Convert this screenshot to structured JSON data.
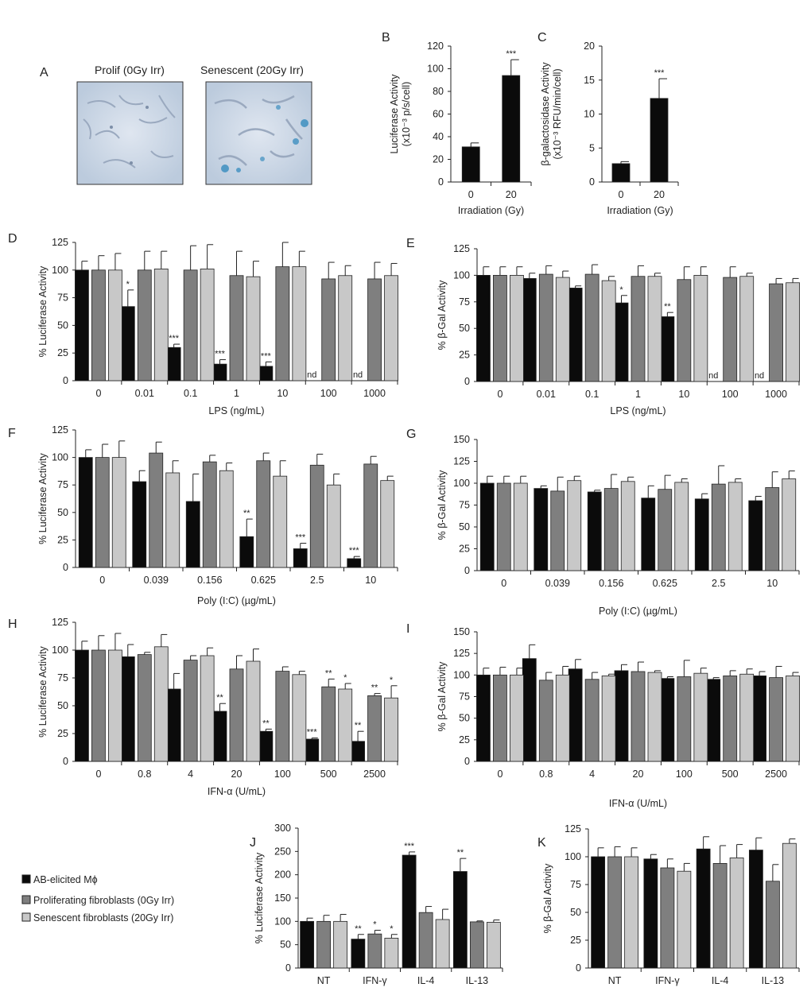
{
  "colors": {
    "black": "#0b0b0b",
    "gray": "#7f7f7f",
    "light": "#c8c8c8",
    "stroke": "#222222",
    "panel_bg": "#c9d6e6"
  },
  "micrographs": {
    "letter": "A",
    "left_title": "Prolif (0Gy Irr)",
    "right_title": "Senescent (20Gy Irr)"
  },
  "legend": {
    "items": [
      {
        "label": "AB-elicited Mϕ",
        "color": "#0b0b0b"
      },
      {
        "label": "Proliferating fibroblasts (0Gy Irr)",
        "color": "#7f7f7f"
      },
      {
        "label": "Senescent fibroblasts (20Gy Irr)",
        "color": "#c8c8c8"
      }
    ]
  },
  "chart_data": [
    {
      "id": "B",
      "type": "bar",
      "letter": "B",
      "ylabel": [
        "Luciferase Activity",
        "(x10⁻³ p/s/cell)"
      ],
      "xlabel": "Irradiation (Gy)",
      "ylim": [
        0,
        120
      ],
      "yticks": [
        0,
        20,
        40,
        60,
        80,
        100,
        120
      ],
      "categories": [
        "0",
        "20"
      ],
      "series": [
        {
          "name": "bar",
          "values": [
            31,
            94
          ],
          "errors": [
            3.5,
            14
          ],
          "stars": [
            "",
            "***"
          ]
        }
      ]
    },
    {
      "id": "C",
      "type": "bar",
      "letter": "C",
      "ylabel": [
        "β-galactosidase Activity",
        "(x10⁻³ RFU/min/cell)"
      ],
      "xlabel": "Irradiation (Gy)",
      "ylim": [
        0,
        20
      ],
      "yticks": [
        0,
        5,
        10,
        15,
        20
      ],
      "categories": [
        "0",
        "20"
      ],
      "series": [
        {
          "name": "bar",
          "values": [
            2.7,
            12.3
          ],
          "errors": [
            0.3,
            2.9
          ],
          "stars": [
            "",
            "***"
          ]
        }
      ]
    },
    {
      "id": "D",
      "type": "bar",
      "letter": "D",
      "ylabel": [
        "% Luciferase Activity"
      ],
      "xlabel": "LPS (ng/mL)",
      "ylim": [
        0,
        125
      ],
      "yticks": [
        0,
        25,
        50,
        75,
        100,
        125
      ],
      "categories": [
        "0",
        "0.01",
        "0.1",
        "1",
        "10",
        "100",
        "1000"
      ],
      "series": [
        {
          "name": "AB-elicited Mϕ",
          "values": [
            100,
            67,
            30,
            15,
            13,
            null,
            null
          ],
          "errors": [
            8,
            15,
            3,
            4,
            4,
            0,
            0
          ],
          "stars": [
            "",
            "*",
            "***",
            "***",
            "***",
            "",
            ""
          ],
          "nd": [
            false,
            false,
            false,
            false,
            false,
            true,
            true
          ]
        },
        {
          "name": "Proliferating fibroblasts (0Gy Irr)",
          "values": [
            100,
            100,
            100,
            95,
            103,
            92,
            92
          ],
          "errors": [
            13,
            17,
            22,
            22,
            22,
            15,
            15
          ],
          "stars": [
            "",
            "",
            "",
            "",
            "",
            "",
            ""
          ]
        },
        {
          "name": "Senescent fibroblasts (20Gy Irr)",
          "values": [
            100,
            101,
            101,
            94,
            103,
            95,
            95
          ],
          "errors": [
            15,
            16,
            22,
            14,
            14,
            9,
            11
          ],
          "stars": [
            "",
            "",
            "",
            "",
            "",
            "",
            ""
          ]
        }
      ]
    },
    {
      "id": "E",
      "type": "bar",
      "letter": "E",
      "ylabel": [
        "% β-Gal Activity"
      ],
      "xlabel": "LPS (ng/mL)",
      "ylim": [
        0,
        125
      ],
      "yticks": [
        0,
        25,
        50,
        75,
        100,
        125
      ],
      "categories": [
        "0",
        "0.01",
        "0.1",
        "1",
        "10",
        "100",
        "1000"
      ],
      "series": [
        {
          "name": "AB-elicited Mϕ",
          "values": [
            100,
            97,
            88,
            74,
            61,
            null,
            null
          ],
          "errors": [
            8,
            5,
            2,
            7,
            4,
            0,
            0
          ],
          "stars": [
            "",
            "",
            "",
            "*",
            "**",
            "",
            ""
          ],
          "nd": [
            false,
            false,
            false,
            false,
            false,
            true,
            true
          ]
        },
        {
          "name": "Proliferating fibroblasts (0Gy Irr)",
          "values": [
            100,
            101,
            101,
            99,
            96,
            98,
            92
          ],
          "errors": [
            8,
            8,
            9,
            10,
            12,
            10,
            5
          ],
          "stars": [
            "",
            "",
            "",
            "",
            "",
            "",
            ""
          ]
        },
        {
          "name": "Senescent fibroblasts (20Gy Irr)",
          "values": [
            100,
            98,
            95,
            99,
            100,
            99,
            93
          ],
          "errors": [
            8,
            6,
            4,
            3,
            8,
            3,
            4
          ],
          "stars": [
            "",
            "",
            "",
            "",
            "",
            "",
            ""
          ]
        }
      ]
    },
    {
      "id": "F",
      "type": "bar",
      "letter": "F",
      "ylabel": [
        "% Luciferase Activity"
      ],
      "xlabel": "Poly (I:C) (µg/mL)",
      "ylim": [
        0,
        125
      ],
      "yticks": [
        0,
        25,
        50,
        75,
        100,
        125
      ],
      "categories": [
        "0",
        "0.039",
        "0.156",
        "0.625",
        "2.5",
        "10"
      ],
      "series": [
        {
          "name": "AB-elicited Mϕ",
          "values": [
            100,
            78,
            60,
            28,
            17,
            8
          ],
          "errors": [
            7,
            10,
            25,
            16,
            5,
            2
          ],
          "stars": [
            "",
            "",
            "",
            "**",
            "***",
            "***"
          ]
        },
        {
          "name": "Proliferating fibroblasts (0Gy Irr)",
          "values": [
            100,
            104,
            96,
            97,
            93,
            94
          ],
          "errors": [
            12,
            10,
            6,
            7,
            10,
            7
          ],
          "stars": [
            "",
            "",
            "",
            "",
            "",
            ""
          ]
        },
        {
          "name": "Senescent fibroblasts (20Gy Irr)",
          "values": [
            100,
            86,
            88,
            83,
            75,
            79
          ],
          "errors": [
            15,
            11,
            7,
            14,
            10,
            4
          ],
          "stars": [
            "",
            "",
            "",
            "",
            "",
            ""
          ]
        }
      ]
    },
    {
      "id": "G",
      "type": "bar",
      "letter": "G",
      "ylabel": [
        "% β-Gal Activity"
      ],
      "xlabel": "Poly (I:C) (µg/mL)",
      "ylim": [
        0,
        150
      ],
      "yticks": [
        0,
        25,
        50,
        75,
        100,
        125,
        150
      ],
      "categories": [
        "0",
        "0.039",
        "0.156",
        "0.625",
        "2.5",
        "10"
      ],
      "series": [
        {
          "name": "AB-elicited Mϕ",
          "values": [
            100,
            94,
            90,
            83,
            82,
            80
          ],
          "errors": [
            8,
            3,
            2,
            14,
            6,
            5
          ],
          "stars": [
            "",
            "",
            "",
            "",
            "",
            ""
          ]
        },
        {
          "name": "Proliferating fibroblasts (0Gy Irr)",
          "values": [
            100,
            91,
            94,
            93,
            99,
            95
          ],
          "errors": [
            8,
            16,
            16,
            16,
            21,
            18
          ],
          "stars": [
            "",
            "",
            "",
            "",
            "",
            ""
          ]
        },
        {
          "name": "Senescent fibroblasts (20Gy Irr)",
          "values": [
            100,
            103,
            102,
            101,
            101,
            105
          ],
          "errors": [
            8,
            5,
            5,
            4,
            4,
            9
          ],
          "stars": [
            "",
            "",
            "",
            "",
            "",
            ""
          ]
        }
      ]
    },
    {
      "id": "H",
      "type": "bar",
      "letter": "H",
      "ylabel": [
        "% Luciferase Activity"
      ],
      "xlabel": "IFN-α (U/mL)",
      "ylim": [
        0,
        125
      ],
      "yticks": [
        0,
        25,
        50,
        75,
        100,
        125
      ],
      "categories": [
        "0",
        "0.8",
        "4",
        "20",
        "100",
        "500",
        "2500"
      ],
      "series": [
        {
          "name": "AB-elicited Mϕ",
          "values": [
            100,
            94,
            65,
            45,
            27,
            20,
            18
          ],
          "errors": [
            8,
            11,
            14,
            7,
            2,
            1,
            9
          ],
          "stars": [
            "",
            "",
            "",
            "**",
            "**",
            "***",
            "**"
          ]
        },
        {
          "name": "Proliferating fibroblasts (0Gy Irr)",
          "values": [
            100,
            96,
            91,
            83,
            81,
            67,
            59
          ],
          "errors": [
            13,
            2,
            4,
            12,
            4,
            7,
            2
          ],
          "stars": [
            "",
            "",
            "",
            "",
            "",
            "**",
            "**"
          ]
        },
        {
          "name": "Senescent fibroblasts (20Gy Irr)",
          "values": [
            100,
            103,
            95,
            90,
            78,
            65,
            57
          ],
          "errors": [
            15,
            11,
            7,
            11,
            3,
            5,
            11
          ],
          "stars": [
            "",
            "",
            "",
            "",
            "",
            "*",
            "*"
          ]
        }
      ]
    },
    {
      "id": "I",
      "type": "bar",
      "letter": "I",
      "ylabel": [
        "% β-Gal Activity"
      ],
      "xlabel": "IFN-α (U/mL)",
      "ylim": [
        0,
        150
      ],
      "yticks": [
        0,
        25,
        50,
        75,
        100,
        125,
        150
      ],
      "categories": [
        "0",
        "0.8",
        "4",
        "20",
        "100",
        "500",
        "2500"
      ],
      "series": [
        {
          "name": "AB-elicited Mϕ",
          "values": [
            100,
            119,
            107,
            105,
            96,
            95,
            99
          ],
          "errors": [
            8,
            16,
            11,
            7,
            2,
            2,
            5
          ],
          "stars": [
            "",
            "",
            "",
            "",
            "",
            "",
            ""
          ]
        },
        {
          "name": "Proliferating fibroblasts (0Gy Irr)",
          "values": [
            100,
            94,
            95,
            104,
            98,
            99,
            97
          ],
          "errors": [
            9,
            9,
            8,
            11,
            19,
            6,
            13
          ],
          "stars": [
            "",
            "",
            "",
            "",
            "",
            "",
            ""
          ]
        },
        {
          "name": "Senescent fibroblasts (20Gy Irr)",
          "values": [
            100,
            100,
            99,
            103,
            102,
            101,
            99
          ],
          "errors": [
            8,
            10,
            2,
            2,
            6,
            6,
            4
          ],
          "stars": [
            "",
            "",
            "",
            "",
            "",
            "",
            ""
          ]
        }
      ]
    },
    {
      "id": "J",
      "type": "bar",
      "letter": "J",
      "ylabel": [
        "% Luciferase Activity"
      ],
      "xlabel": "",
      "ylim": [
        0,
        300
      ],
      "yticks": [
        0,
        50,
        100,
        150,
        200,
        250,
        300
      ],
      "categories": [
        "NT",
        "IFN-γ",
        "IL-4",
        "IL-13"
      ],
      "series": [
        {
          "name": "AB-elicited Mϕ",
          "values": [
            100,
            62,
            242,
            207
          ],
          "errors": [
            7,
            10,
            7,
            28
          ],
          "stars": [
            "",
            "**",
            "***",
            "**"
          ]
        },
        {
          "name": "Proliferating fibroblasts (0Gy Irr)",
          "values": [
            100,
            73,
            119,
            99
          ],
          "errors": [
            13,
            8,
            13,
            2
          ],
          "stars": [
            "",
            "*",
            "",
            ""
          ]
        },
        {
          "name": "Senescent fibroblasts (20Gy Irr)",
          "values": [
            100,
            64,
            104,
            98
          ],
          "errors": [
            15,
            8,
            22,
            5
          ],
          "stars": [
            "",
            "*",
            "",
            ""
          ]
        }
      ]
    },
    {
      "id": "K",
      "type": "bar",
      "letter": "K",
      "ylabel": [
        "% β-Gal Activity"
      ],
      "xlabel": "",
      "ylim": [
        0,
        125
      ],
      "yticks": [
        0,
        25,
        50,
        75,
        100,
        125
      ],
      "categories": [
        "NT",
        "IFN-γ",
        "IL-4",
        "IL-13"
      ],
      "series": [
        {
          "name": "AB-elicited Mϕ",
          "values": [
            100,
            98,
            107,
            106
          ],
          "errors": [
            8,
            4,
            11,
            11
          ],
          "stars": [
            "",
            "",
            "",
            ""
          ]
        },
        {
          "name": "Proliferating fibroblasts (0Gy Irr)",
          "values": [
            100,
            90,
            94,
            78
          ],
          "errors": [
            9,
            8,
            16,
            15
          ],
          "stars": [
            "",
            "",
            "",
            ""
          ]
        },
        {
          "name": "Senescent fibroblasts (20Gy Irr)",
          "values": [
            100,
            87,
            99,
            112
          ],
          "errors": [
            8,
            7,
            12,
            4
          ],
          "stars": [
            "",
            "",
            "",
            ""
          ]
        }
      ]
    }
  ]
}
